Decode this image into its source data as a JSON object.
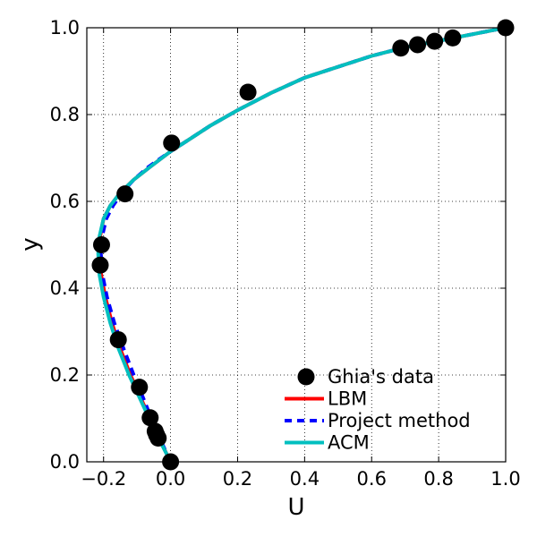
{
  "chart_data": {
    "type": "line",
    "xlabel": "U",
    "ylabel": "y",
    "xlim": [
      -0.25,
      1.0
    ],
    "ylim": [
      0.0,
      1.0
    ],
    "grid": true,
    "grid_style": "dotted",
    "legend_position": "lower-right",
    "x_ticks": [
      {
        "value": -0.2,
        "label": "−0.2"
      },
      {
        "value": 0.0,
        "label": "0.0"
      },
      {
        "value": 0.2,
        "label": "0.2"
      },
      {
        "value": 0.4,
        "label": "0.4"
      },
      {
        "value": 0.6,
        "label": "0.6"
      },
      {
        "value": 0.8,
        "label": "0.8"
      },
      {
        "value": 1.0,
        "label": "1.0"
      }
    ],
    "y_ticks": [
      {
        "value": 0.0,
        "label": "0.0"
      },
      {
        "value": 0.2,
        "label": "0.2"
      },
      {
        "value": 0.4,
        "label": "0.4"
      },
      {
        "value": 0.6,
        "label": "0.6"
      },
      {
        "value": 0.8,
        "label": "0.8"
      },
      {
        "value": 1.0,
        "label": "1.0"
      }
    ],
    "series": [
      {
        "name": "Ghia's data",
        "kind": "scatter",
        "color": "#000000",
        "x": [
          0.0,
          -0.037,
          -0.042,
          -0.046,
          -0.061,
          -0.093,
          -0.156,
          -0.21,
          -0.206,
          -0.136,
          0.003,
          0.231,
          0.687,
          0.737,
          0.788,
          0.842,
          1.0
        ],
        "y": [
          0.0,
          0.0547,
          0.0625,
          0.0703,
          0.1016,
          0.1719,
          0.2813,
          0.4531,
          0.5,
          0.6172,
          0.7344,
          0.8516,
          0.9531,
          0.9609,
          0.9688,
          0.9766,
          1.0
        ]
      },
      {
        "name": "LBM",
        "kind": "line",
        "style": "solid",
        "color": "#ff0000",
        "x": [
          0.0,
          -0.045,
          -0.085,
          -0.12,
          -0.15,
          -0.175,
          -0.195,
          -0.207,
          -0.212,
          -0.21,
          -0.2,
          -0.18,
          -0.15,
          -0.11,
          -0.06,
          0.0,
          0.06,
          0.12,
          0.2,
          0.3,
          0.4,
          0.5,
          0.6,
          0.7,
          0.8,
          0.9,
          1.0
        ],
        "y": [
          0.0,
          0.07,
          0.14,
          0.2,
          0.26,
          0.32,
          0.38,
          0.43,
          0.48,
          0.52,
          0.56,
          0.59,
          0.62,
          0.65,
          0.68,
          0.715,
          0.745,
          0.775,
          0.81,
          0.85,
          0.885,
          0.91,
          0.935,
          0.955,
          0.97,
          0.985,
          1.0
        ]
      },
      {
        "name": "Project method",
        "kind": "line",
        "style": "dashed",
        "color": "#0000ff",
        "x": [
          0.0,
          -0.042,
          -0.078,
          -0.11,
          -0.14,
          -0.168,
          -0.19,
          -0.203,
          -0.208,
          -0.204,
          -0.192,
          -0.172,
          -0.145,
          -0.11,
          -0.065,
          -0.01,
          0.05,
          0.12,
          0.2,
          0.3,
          0.4,
          0.5,
          0.6,
          0.7,
          0.8,
          0.9,
          1.0
        ],
        "y": [
          0.0,
          0.07,
          0.14,
          0.2,
          0.26,
          0.32,
          0.38,
          0.43,
          0.48,
          0.52,
          0.56,
          0.59,
          0.62,
          0.65,
          0.68,
          0.71,
          0.74,
          0.775,
          0.81,
          0.85,
          0.885,
          0.91,
          0.935,
          0.955,
          0.97,
          0.985,
          1.0
        ]
      },
      {
        "name": "ACM",
        "kind": "line",
        "style": "solid",
        "color": "#00bfbf",
        "x": [
          0.0,
          -0.046,
          -0.088,
          -0.124,
          -0.155,
          -0.18,
          -0.2,
          -0.212,
          -0.216,
          -0.212,
          -0.2,
          -0.18,
          -0.15,
          -0.11,
          -0.06,
          0.0,
          0.06,
          0.12,
          0.2,
          0.3,
          0.4,
          0.5,
          0.6,
          0.7,
          0.8,
          0.9,
          1.0
        ],
        "y": [
          0.0,
          0.07,
          0.14,
          0.2,
          0.26,
          0.32,
          0.38,
          0.43,
          0.48,
          0.52,
          0.56,
          0.59,
          0.62,
          0.65,
          0.68,
          0.715,
          0.745,
          0.775,
          0.81,
          0.85,
          0.885,
          0.91,
          0.935,
          0.955,
          0.97,
          0.985,
          1.0
        ]
      }
    ]
  }
}
